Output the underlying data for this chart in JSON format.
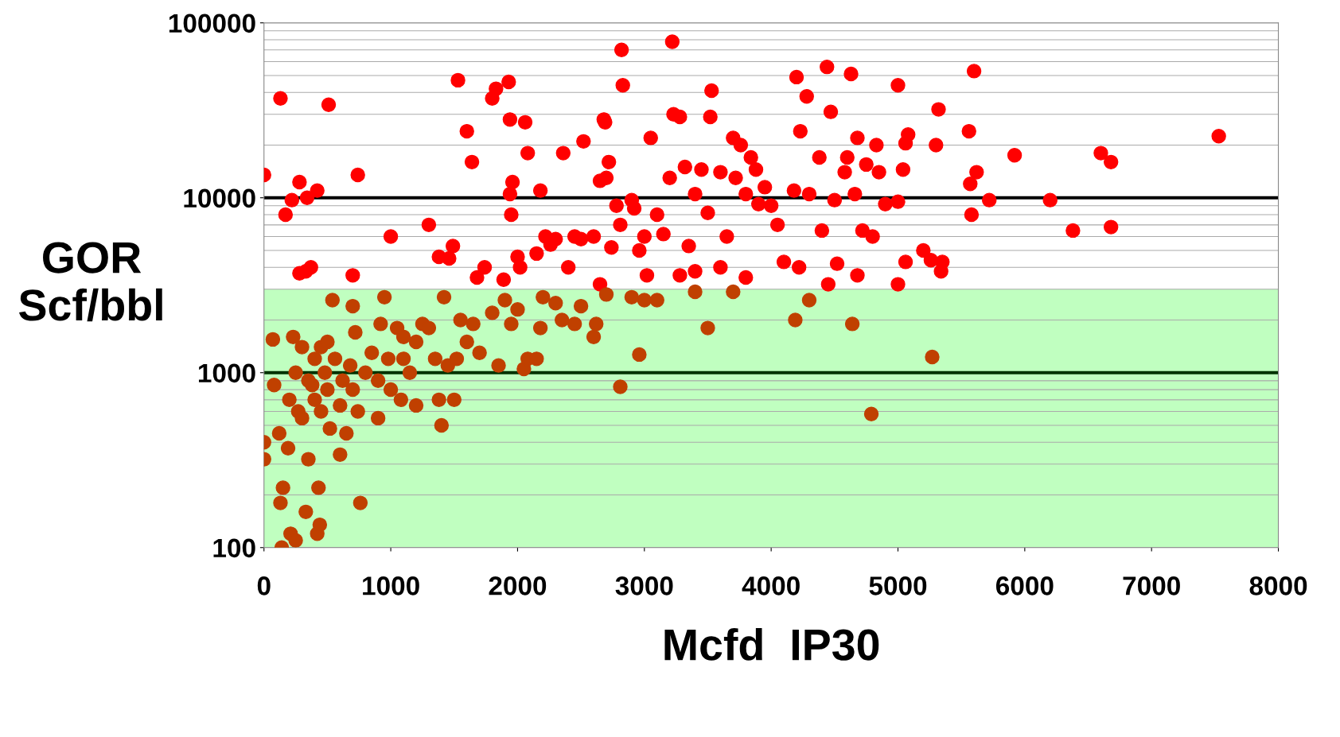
{
  "chart_data": {
    "type": "scatter",
    "xlabel": "Mcfd  IP30",
    "ylabel": "GOR\nScf/bbl",
    "log": "y",
    "marker": "circle",
    "grid": "y",
    "xlim": [
      0,
      8000
    ],
    "ylim": [
      100,
      100000
    ],
    "xticks": [
      0,
      1000,
      2000,
      3000,
      4000,
      5000,
      6000,
      7000,
      8000
    ],
    "yticks": [
      100,
      1000,
      10000,
      100000
    ],
    "bands": [
      {
        "axis": "y",
        "from": 100,
        "to": 3000,
        "color": "#c0ffc0"
      }
    ],
    "ref_lines": [
      {
        "axis": "y",
        "value": 1000,
        "color": "#003300"
      },
      {
        "axis": "y",
        "value": 10000,
        "color": "#000000"
      }
    ],
    "series": [
      {
        "color": "#ff0000",
        "x": [
          0,
          130,
          170,
          220,
          280,
          340,
          420,
          510,
          740,
          280,
          330,
          370,
          700,
          1000,
          1300,
          1380,
          1460,
          1490,
          1530,
          1600,
          1640,
          1680,
          1740,
          1800,
          1830,
          1890,
          1930,
          1940,
          1940,
          1960,
          1950,
          2000,
          2020,
          2060,
          2080,
          2150,
          2180,
          2220,
          2260,
          2300,
          2360,
          2400,
          2450,
          2500,
          2520,
          2600,
          2650,
          2680,
          2690,
          2700,
          2720,
          2740,
          2780,
          2810,
          2820,
          2830,
          2900,
          2920,
          2960,
          3000,
          3050,
          3100,
          3150,
          3200,
          3220,
          3230,
          3280,
          3320,
          3350,
          3400,
          3450,
          3500,
          3520,
          3530,
          3600,
          3650,
          3700,
          3720,
          3760,
          3800,
          3840,
          3880,
          3900,
          3950,
          4000,
          4050,
          4180,
          4200,
          4230,
          4280,
          4300,
          4380,
          4400,
          4440,
          4470,
          4500,
          4580,
          4600,
          4630,
          4660,
          4680,
          4720,
          4750,
          4800,
          4830,
          4850,
          4900,
          5000,
          5000,
          5040,
          5060,
          5080,
          5060,
          5300,
          5320,
          5200,
          5260,
          5350,
          5340,
          5560,
          5570,
          5580,
          5600,
          5620,
          5720,
          5920,
          6200,
          6380,
          6600,
          6680,
          6680,
          7530,
          3400,
          3600,
          3800,
          4100,
          4220,
          4520,
          4450,
          5000,
          4680,
          3020,
          3280,
          2650
        ],
        "values": [
          13500,
          37000,
          8000,
          9700,
          12300,
          10000,
          11000,
          34000,
          13500,
          3700,
          3800,
          4000,
          3600,
          6000,
          7000,
          4600,
          4500,
          5300,
          47000,
          24000,
          16000,
          3500,
          4000,
          37000,
          42000,
          3400,
          46000,
          28000,
          10500,
          12300,
          8000,
          4600,
          4000,
          27000,
          18000,
          4800,
          11000,
          6000,
          5400,
          5800,
          18000,
          4000,
          6000,
          5800,
          21000,
          6000,
          12500,
          28000,
          27000,
          13000,
          16000,
          5200,
          9000,
          7000,
          70000,
          44000,
          9700,
          8700,
          5000,
          6000,
          22000,
          8000,
          6200,
          13000,
          78000,
          30000,
          29000,
          15000,
          5300,
          10500,
          14500,
          8200,
          29000,
          41000,
          14000,
          6000,
          22000,
          13000,
          20000,
          10500,
          17000,
          14500,
          9200,
          11500,
          9000,
          7000,
          11000,
          49000,
          24000,
          38000,
          10500,
          17000,
          6500,
          56000,
          31000,
          9700,
          14000,
          17000,
          51000,
          10500,
          22000,
          6500,
          15500,
          6000,
          20000,
          14000,
          9200,
          44000,
          9500,
          14500,
          20500,
          23000,
          4300,
          20000,
          32000,
          5000,
          4400,
          4300,
          3800,
          24000,
          12000,
          8000,
          53000,
          14000,
          9700,
          17500,
          9700,
          6500,
          18000,
          16000,
          6800,
          22500,
          3800,
          4000,
          3500,
          4300,
          4000,
          4200,
          3200,
          3200,
          3600,
          3600,
          3600,
          3200
        ]
      },
      {
        "color": "#c04000",
        "x": [
          0,
          0,
          70,
          80,
          120,
          130,
          140,
          150,
          190,
          210,
          230,
          250,
          250,
          270,
          300,
          330,
          350,
          380,
          400,
          420,
          430,
          440,
          450,
          480,
          500,
          520,
          540,
          560,
          600,
          620,
          650,
          680,
          700,
          720,
          740,
          760,
          800,
          850,
          900,
          920,
          950,
          980,
          1000,
          1050,
          1080,
          1100,
          1150,
          1200,
          1250,
          1300,
          1350,
          1380,
          1400,
          1420,
          1450,
          1500,
          1520,
          1550,
          1600,
          1650,
          1700,
          1800,
          1850,
          1900,
          1950,
          2000,
          2050,
          2080,
          2150,
          2180,
          2200,
          2300,
          2350,
          2450,
          2500,
          2600,
          2620,
          2700,
          2810,
          2900,
          2960,
          3000,
          3100,
          3500,
          4190,
          4300,
          4640,
          4790,
          5270,
          3400,
          3700,
          200,
          300,
          600,
          700,
          400,
          500,
          900,
          1100,
          1200,
          350,
          450
        ],
        "values": [
          400,
          320,
          1550,
          850,
          450,
          180,
          100,
          220,
          370,
          120,
          1600,
          110,
          1000,
          600,
          1400,
          160,
          320,
          850,
          700,
          120,
          220,
          135,
          1400,
          1000,
          800,
          480,
          2600,
          1200,
          340,
          900,
          450,
          1100,
          2400,
          1700,
          600,
          180,
          1000,
          1300,
          550,
          1900,
          2700,
          1200,
          800,
          1800,
          700,
          1200,
          1000,
          650,
          1900,
          1800,
          1200,
          700,
          500,
          2700,
          1100,
          700,
          1200,
          2000,
          1500,
          1900,
          1300,
          2200,
          1100,
          2600,
          1900,
          2300,
          1050,
          1200,
          1200,
          1800,
          2700,
          2500,
          2000,
          1900,
          2400,
          1600,
          1900,
          2800,
          830,
          2700,
          1270,
          2600,
          2600,
          1800,
          2000,
          2600,
          1900,
          580,
          1230,
          2900,
          2900,
          700,
          550,
          650,
          800,
          1200,
          1500,
          900,
          1600,
          1500,
          900,
          600
        ]
      }
    ]
  }
}
